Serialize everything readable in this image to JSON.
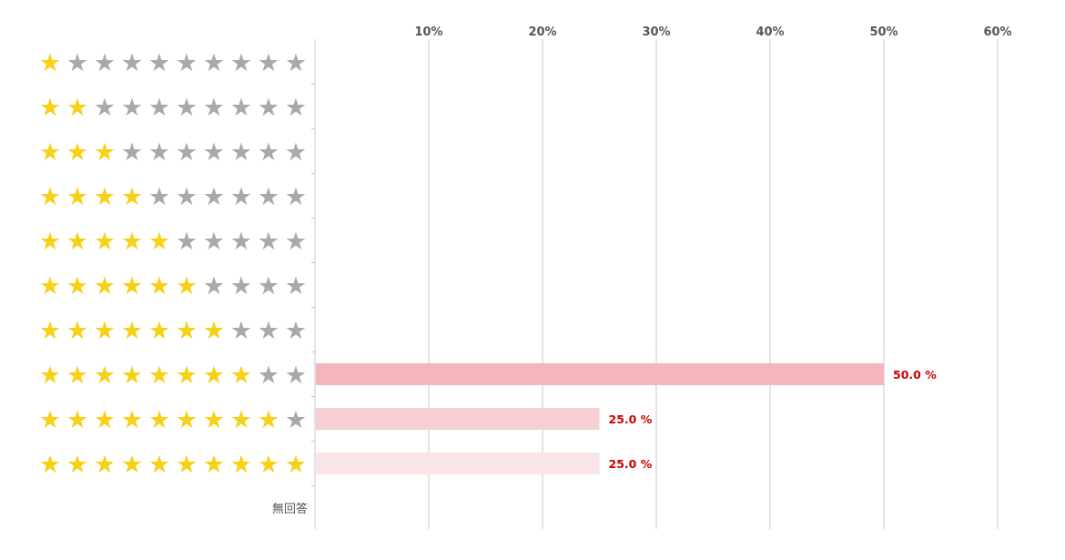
{
  "chart_data": {
    "type": "bar",
    "orientation": "horizontal",
    "categories": [
      "1 star",
      "2 stars",
      "3 stars",
      "4 stars",
      "5 stars",
      "6 stars",
      "7 stars",
      "8 stars",
      "9 stars",
      "10 stars",
      "無回答"
    ],
    "category_stars": [
      1,
      2,
      3,
      4,
      5,
      6,
      7,
      8,
      9,
      10,
      null
    ],
    "max_stars": 10,
    "no_answer_label": "無回答",
    "values": [
      0,
      0,
      0,
      0,
      0,
      0,
      0,
      50.0,
      25.0,
      25.0,
      0
    ],
    "value_labels": [
      "",
      "",
      "",
      "",
      "",
      "",
      "",
      "50.0 %",
      "25.0 %",
      "25.0 %",
      ""
    ],
    "xlim": [
      0,
      60
    ],
    "xticks": [
      10,
      20,
      30,
      40,
      50,
      60
    ],
    "xtick_labels": [
      "10%",
      "20%",
      "30%",
      "40%",
      "50%",
      "60%"
    ],
    "grid": true,
    "title": "",
    "xlabel": "",
    "ylabel": ""
  },
  "colors": {
    "star_filled": "#f7d117",
    "star_empty": "#a9a9a9",
    "gridline": "#c8c8c8",
    "axis": "#c8c8c8",
    "bar_colors": [
      "#f4b6ba",
      "#f4b6ba",
      "#f4b6ba",
      "#f4b6ba",
      "#f4b6ba",
      "#f4b6ba",
      "#f4b6ba",
      "#f4b6ba",
      "#f7ced1",
      "#fae5e6",
      "#fae5e6"
    ],
    "value_label": "#cc0000",
    "tick_label": "#555555"
  },
  "icons": {
    "filled": "star-filled-icon",
    "empty": "star-empty-icon"
  }
}
